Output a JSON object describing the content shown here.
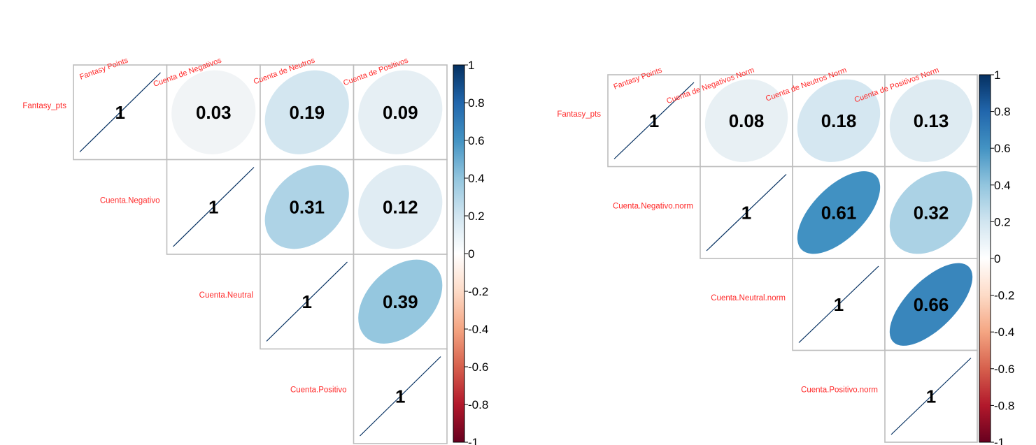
{
  "chart_data": [
    {
      "type": "heatmap",
      "columns": [
        "Fantasy Points",
        "Cuenta de Negativos",
        "Cuenta de Neutros",
        "Cuenta de Positivos"
      ],
      "rows": [
        "Fantasy_pts",
        "Cuenta.Negativo",
        "Cuenta.Neutral",
        "Cuenta.Positivo"
      ],
      "values": [
        [
          1,
          0.03,
          0.19,
          0.09
        ],
        [
          null,
          1,
          0.31,
          0.12
        ],
        [
          null,
          null,
          1,
          0.39
        ],
        [
          null,
          null,
          null,
          1
        ]
      ],
      "labels": [
        [
          "1",
          "0.03",
          "0.19",
          "0.09"
        ],
        [
          "",
          "1",
          "0.31",
          "0.12"
        ],
        [
          "",
          "",
          "1",
          "0.39"
        ],
        [
          "",
          "",
          "",
          "1"
        ]
      ],
      "colorbar": {
        "range": [
          -1,
          1
        ],
        "ticks": [
          "1",
          "0.8",
          "0.6",
          "0.4",
          "0.2",
          "0",
          "-0.2",
          "-0.4",
          "-0.6",
          "-0.8",
          "-1"
        ]
      },
      "layout": "upper-triangle"
    },
    {
      "type": "heatmap",
      "columns": [
        "Fantasy Points",
        "Cuenta de Negativos Norm",
        "Cuenta de Neutros Norm",
        "Cuenta de Positivos Norm"
      ],
      "rows": [
        "Fantasy_pts",
        "Cuenta.Negativo.norm",
        "Cuenta.Neutral.norm",
        "Cuenta.Positivo.norm"
      ],
      "values": [
        [
          1,
          0.08,
          0.18,
          0.13
        ],
        [
          null,
          1,
          0.61,
          0.32
        ],
        [
          null,
          null,
          1,
          0.66
        ],
        [
          null,
          null,
          null,
          1
        ]
      ],
      "labels": [
        [
          "1",
          "0.08",
          "0.18",
          "0.13"
        ],
        [
          "",
          "1",
          "0.61",
          "0.32"
        ],
        [
          "",
          "",
          "1",
          "0.66"
        ],
        [
          "",
          "",
          "",
          "1"
        ]
      ],
      "colorbar": {
        "range": [
          -1,
          1
        ],
        "ticks": [
          "1",
          "0.8",
          "0.6",
          "0.4",
          "0.2",
          "0",
          "-0.2",
          "-0.4",
          "-0.6",
          "-0.8",
          "-1"
        ]
      },
      "layout": "upper-triangle"
    }
  ]
}
